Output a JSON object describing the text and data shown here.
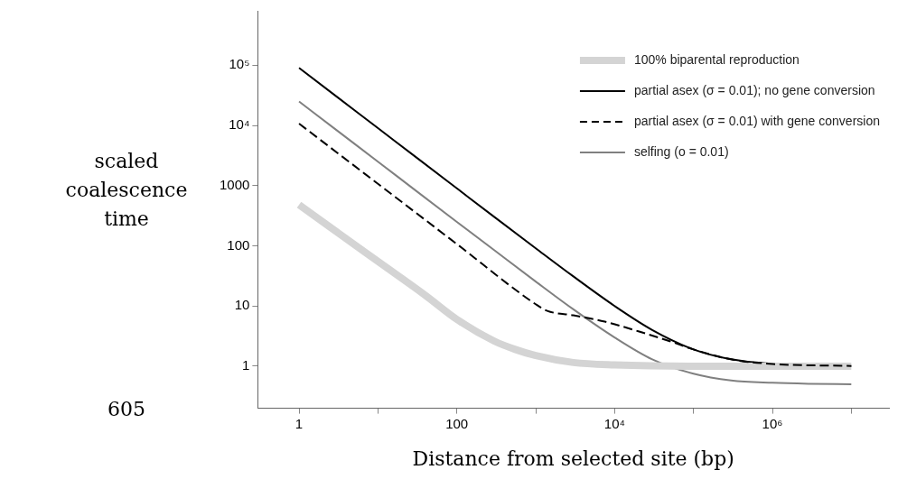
{
  "chart_data": {
    "type": "line",
    "xlabel": "Distance from selected site (bp)",
    "ylabel": "scaled coalescence time",
    "log": "xy",
    "grid": false,
    "legend": "top right",
    "marker": "none",
    "xlim": [
      0.3,
      30000000
    ],
    "ylim": [
      0.2,
      800000
    ],
    "xticks": [
      1,
      {
        "value": 10,
        "label": null
      },
      100,
      {
        "value": 1000,
        "label": null
      },
      {
        "value": 10000,
        "label": "10⁴"
      },
      {
        "value": 100000,
        "label": null
      },
      {
        "value": 1000000,
        "label": "10⁶"
      },
      {
        "value": 10000000,
        "label": null
      }
    ],
    "yticks": [
      1,
      10,
      100,
      1000,
      {
        "value": 10000,
        "label": "10⁴"
      },
      {
        "value": 100000,
        "label": "10⁵"
      }
    ],
    "annotations": [
      "605"
    ],
    "series": [
      {
        "name": "100% biparental reproduction",
        "color": "#d4d4d4",
        "line_style": "solid",
        "x": [
          1,
          3,
          10,
          40,
          100,
          300,
          550,
          1000,
          3000,
          10000,
          100000,
          1000000,
          10000000
        ],
        "values": [
          480,
          170,
          55,
          15,
          6,
          2.6,
          1.9,
          1.5,
          1.15,
          1.05,
          1,
          1,
          1
        ]
      },
      {
        "name": "partial asex (σ = 0.01); no gene conversion",
        "color": "#000000",
        "line_style": "solid",
        "x": [
          1,
          3,
          10,
          30,
          100,
          300,
          1000,
          3000,
          10000,
          30000,
          100000,
          300000,
          1000000,
          3000000,
          10000000
        ],
        "values": [
          90000,
          30000,
          9000,
          3000,
          900,
          300,
          91,
          31,
          10,
          4,
          1.9,
          1.3,
          1.09,
          1.03,
          1.01
        ]
      },
      {
        "name": "partial asex (σ = 0.01) with gene conversion",
        "color": "#000000",
        "line_style": "dashed",
        "x": [
          1,
          10,
          100,
          1000,
          1400,
          3000,
          7500,
          20000,
          50000,
          100000,
          300000,
          1000000,
          10000000
        ],
        "values": [
          10700,
          1070,
          107,
          10.7,
          8.3,
          7,
          5.5,
          3.8,
          2.6,
          1.9,
          1.3,
          1.09,
          1.01
        ]
      },
      {
        "name": "selfing (o = 0.01)",
        "color": "#808080",
        "line_style": "solid",
        "x": [
          1,
          3,
          10,
          30,
          100,
          300,
          1000,
          3000,
          10000,
          30000,
          100000,
          300000,
          1000000,
          3000000,
          10000000
        ],
        "values": [
          25000,
          8300,
          2500,
          830,
          250,
          84,
          25.5,
          8.8,
          3,
          1.3,
          0.75,
          0.58,
          0.53,
          0.51,
          0.5
        ]
      }
    ]
  }
}
